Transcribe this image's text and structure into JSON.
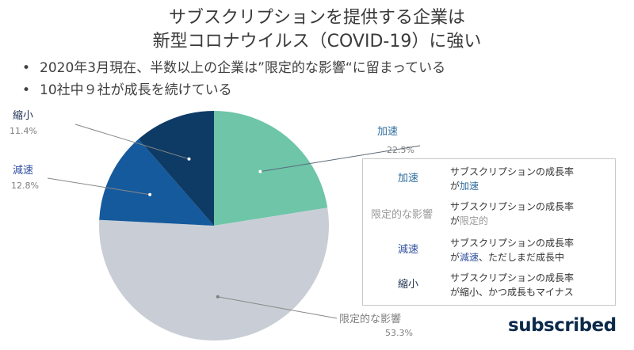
{
  "title": {
    "line1": "サブスクリプションを提供する企業は",
    "line2": "新型コロナウイルス（COVID-19）に強い"
  },
  "bullets": [
    "2020年3月現在、半数以上の企業は”限定的な影響“に留まっている",
    "10社中９社が成長を続けている"
  ],
  "chart_data": {
    "type": "pie",
    "categories": [
      "加速",
      "限定的な影響",
      "減速",
      "縮小"
    ],
    "values": [
      22.5,
      53.3,
      12.8,
      11.4
    ],
    "value_labels": [
      "22.5%",
      "53.3%",
      "12.8%",
      "11.4%"
    ],
    "colors": [
      "#6ec5a8",
      "#c9ced6",
      "#155a9c",
      "#0e3b66"
    ],
    "label_colors": [
      "#2e6e9e",
      "#7f7f7f",
      "#2f4fa0",
      "#1a2f4f"
    ],
    "start_angle_deg": 0,
    "direction": "clockwise"
  },
  "legend": {
    "rows": [
      {
        "key": "加速",
        "key_color": "#2e6e9e",
        "line1": "サブスクリプションの成長率",
        "pre": "が",
        "highlight": "加速",
        "post": "",
        "highlight_color": "#2e6e9e"
      },
      {
        "key": "限定的な影響",
        "key_color": "#9a9a9a",
        "line1": "サブスクリプションの成長率",
        "pre": "が",
        "highlight": "限定的",
        "post": "",
        "highlight_color": "#9a9a9a"
      },
      {
        "key": "減速",
        "key_color": "#2f4fa0",
        "line1": "サブスクリプションの成長率",
        "pre": "が",
        "highlight": "減速",
        "post": "、ただしまだ成長中",
        "highlight_color": "#2f4fa0"
      },
      {
        "key": "縮小",
        "key_color": "#1a2f4f",
        "line1": "サブスクリプションの成長率",
        "pre": "が",
        "highlight": "縮小",
        "post": "、かつ成長もマイナス",
        "highlight_color": "#333333"
      }
    ]
  },
  "logo": "subscribed"
}
